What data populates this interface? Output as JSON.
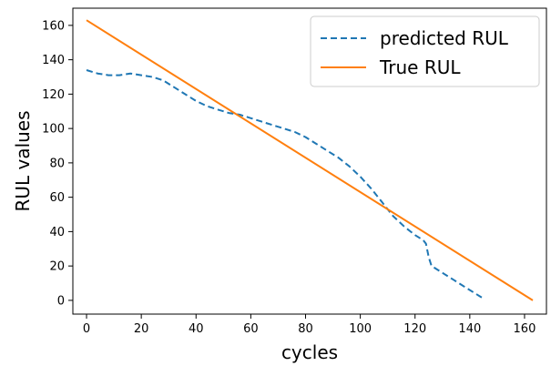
{
  "chart_data": {
    "type": "line",
    "xlabel": "cycles",
    "ylabel": "RUL values",
    "xlim": [
      -5,
      168
    ],
    "ylim": [
      -8,
      170
    ],
    "xticks": [
      0,
      20,
      40,
      60,
      80,
      100,
      120,
      140,
      160
    ],
    "yticks": [
      0,
      20,
      40,
      60,
      80,
      100,
      120,
      140,
      160
    ],
    "legend_position": "top-right",
    "grid": false,
    "series": [
      {
        "name": "predicted RUL",
        "style": "dashed",
        "color": "#1f77b4",
        "x": [
          0,
          4,
          8,
          12,
          16,
          20,
          24,
          28,
          32,
          36,
          40,
          44,
          48,
          52,
          56,
          60,
          64,
          68,
          72,
          76,
          80,
          84,
          88,
          92,
          96,
          100,
          104,
          108,
          112,
          116,
          120,
          123,
          124,
          125,
          126,
          130,
          134,
          138,
          142,
          145
        ],
        "y": [
          134,
          132,
          131,
          131,
          132,
          131,
          130,
          128,
          124,
          120,
          116,
          113,
          111,
          109,
          108,
          106,
          104,
          102,
          100,
          98,
          95,
          91,
          87,
          83,
          78,
          72,
          65,
          57,
          49,
          43,
          38,
          35,
          33,
          25,
          20,
          16,
          12,
          8,
          4,
          1
        ]
      },
      {
        "name": "True RUL",
        "style": "solid",
        "color": "#ff7f0e",
        "x": [
          0,
          163
        ],
        "y": [
          163,
          0
        ]
      }
    ]
  }
}
